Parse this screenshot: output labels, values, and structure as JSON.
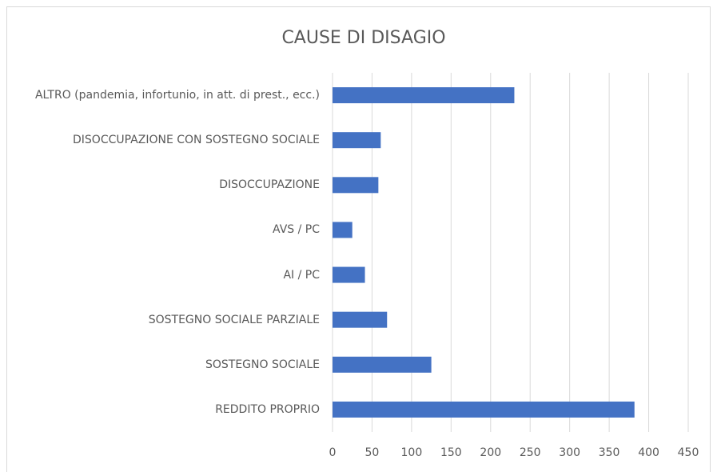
{
  "chart_data": {
    "type": "bar",
    "orientation": "horizontal",
    "title": "CAUSE DI DISAGIO",
    "categories": [
      "ALTRO (pandemia, infortunio, in att. di prest., ecc.)",
      "DISOCCUPAZIONE CON SOSTEGNO SOCIALE",
      "DISOCCUPAZIONE",
      "AVS / PC",
      "AI / PC",
      "SOSTEGNO SOCIALE PARZIALE",
      "SOSTEGNO SOCIALE",
      "REDDITO PROPRIO"
    ],
    "values": [
      230,
      61,
      58,
      25,
      41,
      69,
      125,
      382
    ],
    "color": "#4472c4",
    "xlim": [
      0,
      450
    ],
    "xticks": [
      0,
      50,
      100,
      150,
      200,
      250,
      300,
      350,
      400,
      450
    ],
    "grid": true
  }
}
